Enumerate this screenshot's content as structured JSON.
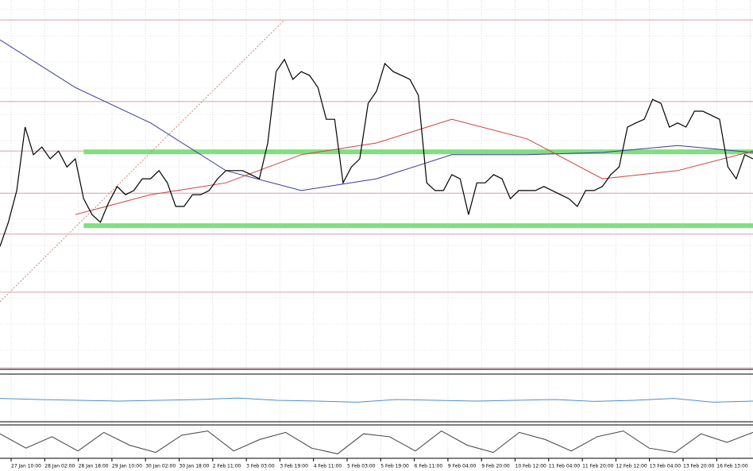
{
  "chart_data": {
    "type": "line",
    "categories": [
      "27 Jan 10:00",
      "28 Jan 02:00",
      "28 Jan 18:00",
      "29 Jan 10:00",
      "30 Jan 02:00",
      "30 Jan 18:00",
      "2 Feb 11:00",
      "3 Feb 03:00",
      "3 Feb 19:00",
      "4 Feb 11:00",
      "5 Feb 03:00",
      "5 Feb 19:00",
      "6 Feb 11:00",
      "9 Feb 04:00",
      "9 Feb 20:00",
      "10 Feb 12:00",
      "11 Feb 04:00",
      "11 Feb 20:00",
      "12 Feb 12:00",
      "13 Feb 04:00",
      "13 Feb 20:00",
      "16 Feb 13:00"
    ],
    "ylim": [
      0,
      100
    ],
    "grid": true,
    "price": {
      "color": "#000000",
      "values": [
        33.3,
        39.8,
        48.4,
        65.6,
        58.1,
        60.2,
        57.0,
        59.1,
        54.8,
        57.0,
        46.2,
        41.9,
        39.8,
        45.2,
        49.5,
        47.3,
        48.4,
        51.6,
        51.6,
        53.8,
        50.5,
        44.1,
        44.1,
        47.3,
        47.3,
        48.4,
        51.6,
        53.8,
        53.8,
        53.8,
        52.7,
        51.6,
        61.3,
        80.6,
        83.9,
        78.5,
        80.6,
        79.6,
        76.3,
        67.7,
        67.7,
        50.5,
        54.8,
        57.0,
        72.0,
        75.3,
        82.8,
        80.6,
        79.6,
        78.5,
        74.2,
        50.5,
        48.4,
        48.4,
        52.7,
        51.6,
        41.9,
        50.5,
        50.5,
        52.7,
        51.6,
        46.2,
        48.4,
        48.4,
        48.4,
        49.5,
        48.4,
        47.3,
        46.2,
        44.1,
        48.4,
        48.4,
        49.5,
        52.7,
        54.8,
        65.6,
        66.7,
        67.7,
        73.1,
        72.0,
        65.6,
        66.7,
        65.6,
        69.9,
        69.9,
        68.8,
        67.7,
        54.8,
        51.6,
        58.1,
        57.0
      ]
    },
    "averages": [
      {
        "color": "#3a3a9a",
        "values": [
          89.2,
          76.3,
          66.7,
          53.8,
          48.4,
          51.6,
          58.1,
          58.1,
          58.7,
          60.6,
          58.7
        ]
      },
      {
        "color": "#d04040",
        "values": [
          null,
          41.9,
          47.3,
          50.5,
          58.1,
          61.3,
          67.7,
          62.4,
          51.6,
          53.8,
          59.1
        ]
      }
    ],
    "levels": {
      "color": "#d4a0a8",
      "values": [
        94.6,
        72.5,
        59.1,
        47.7,
        36.6,
        20.9,
        0.4
      ]
    },
    "zones": {
      "color": "#7ee07e",
      "from": 10,
      "values": [
        58.9,
        38.9
      ]
    },
    "trendline": {
      "color": "#d08080",
      "x": [
        0,
        34
      ],
      "values": [
        18.3,
        94.6
      ]
    },
    "rsi": {
      "color": "#4a90d0",
      "ylim": [
        0,
        100
      ],
      "values": [
        55,
        52,
        50,
        48,
        50,
        52,
        56,
        50,
        48,
        45,
        52,
        50,
        48,
        50,
        52,
        47,
        50,
        55,
        45,
        48
      ]
    },
    "stochastic": {
      "color": "#404040",
      "ylim": [
        0,
        100
      ],
      "values": [
        80,
        30,
        70,
        20,
        85,
        40,
        15,
        75,
        90,
        20,
        60,
        85,
        30,
        10,
        80,
        70,
        20,
        90,
        40,
        15,
        85,
        60,
        20,
        70,
        90,
        30,
        15,
        80,
        50,
        85
      ]
    }
  }
}
